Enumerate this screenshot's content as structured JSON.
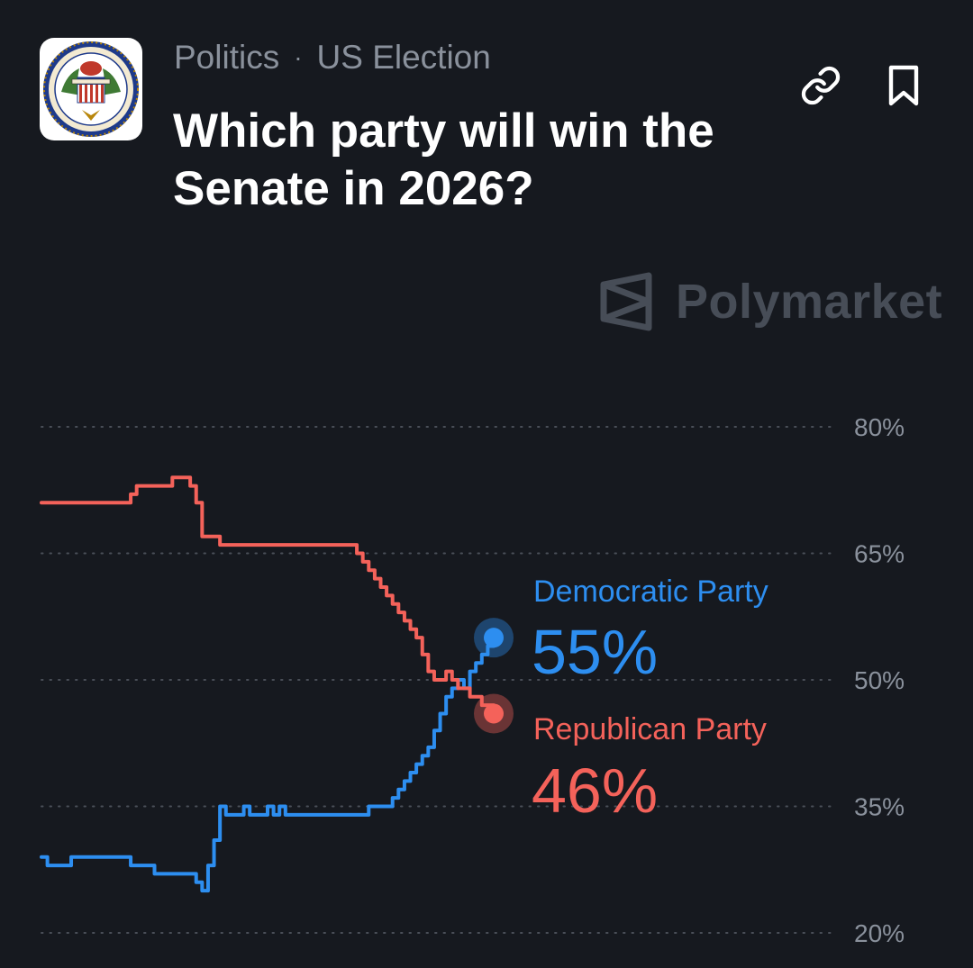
{
  "header": {
    "category": "Politics",
    "separator": "·",
    "subcategory": "US Election",
    "title": "Which party will win the Senate in 2026?",
    "logo_icon": "us-senate-seal-icon",
    "actions": [
      {
        "icon": "link-icon"
      },
      {
        "icon": "bookmark-icon"
      }
    ]
  },
  "watermark": {
    "text": "Polymarket",
    "icon": "polymarket-logo-icon"
  },
  "colors": {
    "background": "#16191f",
    "democratic": "#2d8ef0",
    "republican": "#f4625a",
    "grid": "#4a4f58",
    "muted": "#8a919c"
  },
  "chart_data": {
    "type": "line",
    "yticks": [
      "80%",
      "65%",
      "50%",
      "35%",
      "20%"
    ],
    "ylim": [
      20,
      80
    ],
    "grid": true,
    "series": [
      {
        "name": "Democratic Party",
        "label": "55%",
        "current": 55,
        "values": [
          29,
          28,
          28,
          28,
          28,
          29,
          29,
          29,
          29,
          29,
          29,
          29,
          29,
          29,
          29,
          28,
          28,
          28,
          28,
          27,
          27,
          27,
          27,
          27,
          27,
          27,
          26,
          25,
          28,
          31,
          35,
          34,
          34,
          34,
          35,
          34,
          34,
          34,
          35,
          34,
          35,
          34,
          34,
          34,
          34,
          34,
          34,
          34,
          34,
          34,
          34,
          34,
          34,
          34,
          34,
          35,
          35,
          35,
          35,
          36,
          37,
          38,
          39,
          40,
          41,
          42,
          44,
          46,
          48,
          49,
          50,
          49,
          51,
          52,
          53,
          54,
          55
        ]
      },
      {
        "name": "Republican Party",
        "label": "46%",
        "current": 46,
        "values": [
          71,
          71,
          71,
          71,
          71,
          71,
          71,
          71,
          71,
          71,
          71,
          71,
          71,
          71,
          71,
          72,
          73,
          73,
          73,
          73,
          73,
          73,
          74,
          74,
          74,
          73,
          71,
          67,
          67,
          67,
          66,
          66,
          66,
          66,
          66,
          66,
          66,
          66,
          66,
          66,
          66,
          66,
          66,
          66,
          66,
          66,
          66,
          66,
          66,
          66,
          66,
          66,
          66,
          65,
          64,
          63,
          62,
          61,
          60,
          59,
          58,
          57,
          56,
          55,
          53,
          51,
          50,
          50,
          51,
          50,
          49,
          49,
          48,
          48,
          47,
          47,
          46
        ]
      }
    ]
  }
}
